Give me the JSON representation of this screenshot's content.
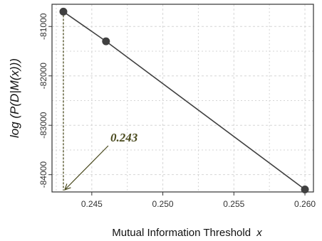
{
  "chart_data": {
    "type": "line",
    "title": "",
    "xlabel": "Mutual Information Threshold",
    "xlabel_var": "x",
    "ylabel": "log (P(D|M(x)))",
    "xlim": [
      0.2422,
      0.2606
    ],
    "ylim": [
      -84350,
      -80550
    ],
    "grid": true,
    "x_ticks": [
      0.245,
      0.25,
      0.255,
      0.26
    ],
    "x_tick_labels": [
      "0.245",
      "0.250",
      "0.255",
      "0.260"
    ],
    "y_ticks": [
      -81000,
      -82000,
      -83000,
      -84000
    ],
    "y_tick_labels": [
      "-81000",
      "-82000",
      "-83000",
      "-84000"
    ],
    "series": [
      {
        "color": "#404040",
        "x": [
          0.243,
          0.246,
          0.26
        ],
        "y": [
          -80700,
          -81300,
          -84300
        ]
      }
    ],
    "annotation": {
      "text": "0.243",
      "x": 0.243,
      "color": "#4a4a1e"
    },
    "colors": {
      "line": "#404040",
      "grid": "#d6d6d6",
      "frame": "#333333",
      "annotation": "#4a4a1e"
    }
  }
}
